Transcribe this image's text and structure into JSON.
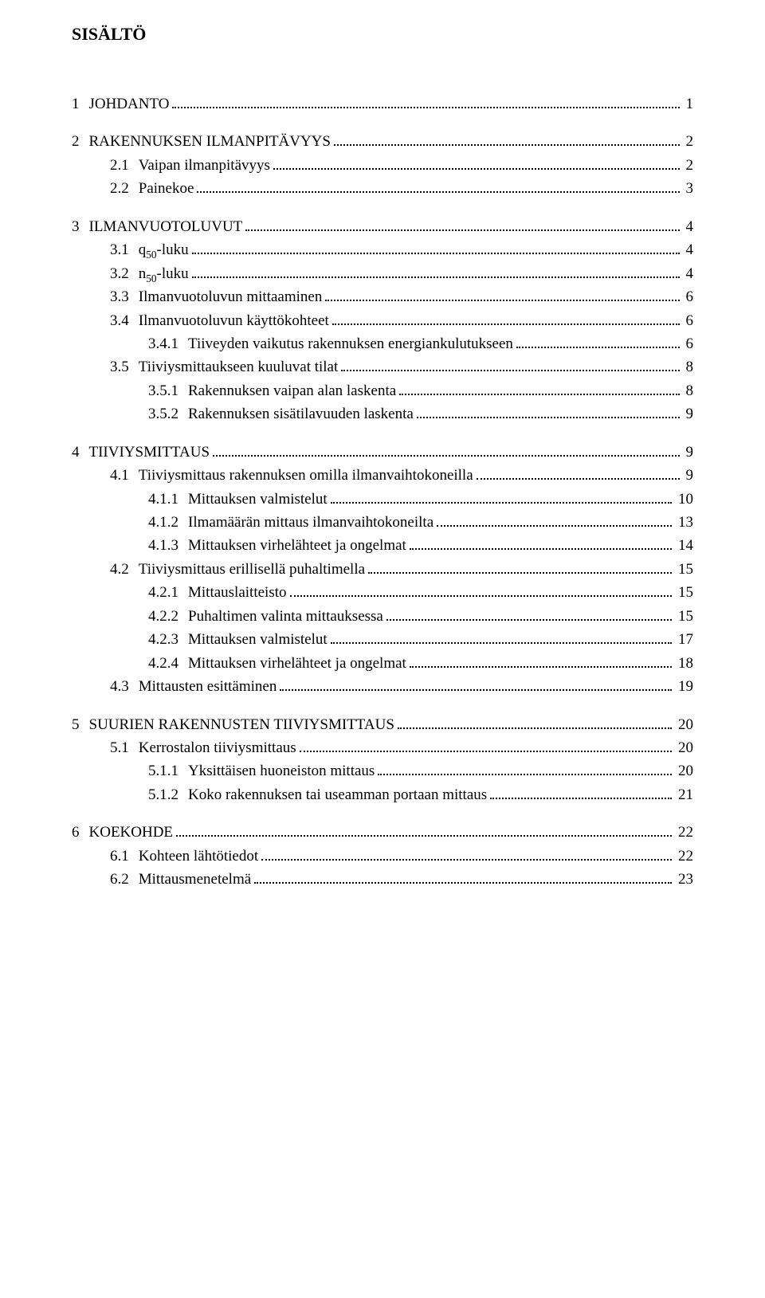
{
  "title": "SISÄLTÖ",
  "entries": [
    {
      "indent": 0,
      "gap": true,
      "num": "1",
      "label": "JOHDANTO",
      "page": "1"
    },
    {
      "indent": 0,
      "gap": true,
      "num": "2",
      "label": "RAKENNUKSEN ILMANPITÄVYYS",
      "page": "2"
    },
    {
      "indent": 1,
      "gap": false,
      "num": "2.1",
      "label": "Vaipan ilmanpitävyys",
      "page": "2"
    },
    {
      "indent": 1,
      "gap": false,
      "num": "2.2",
      "label": "Painekoe",
      "page": "3"
    },
    {
      "indent": 0,
      "gap": true,
      "num": "3",
      "label": "ILMANVUOTOLUVUT",
      "page": "4"
    },
    {
      "indent": 1,
      "gap": false,
      "num": "3.1",
      "label": "q50-luku",
      "page": "4",
      "sub50": true
    },
    {
      "indent": 1,
      "gap": false,
      "num": "3.2",
      "label": "n50-luku",
      "page": "4",
      "sub50": true
    },
    {
      "indent": 1,
      "gap": false,
      "num": "3.3",
      "label": "Ilmanvuotoluvun mittaaminen",
      "page": "6"
    },
    {
      "indent": 1,
      "gap": false,
      "num": "3.4",
      "label": "Ilmanvuotoluvun käyttökohteet",
      "page": "6"
    },
    {
      "indent": 2,
      "gap": false,
      "num": "3.4.1",
      "label": "Tiiveyden vaikutus rakennuksen energiankulutukseen",
      "page": "6"
    },
    {
      "indent": 1,
      "gap": false,
      "num": "3.5",
      "label": "Tiiviysmittaukseen kuuluvat tilat",
      "page": "8"
    },
    {
      "indent": 2,
      "gap": false,
      "num": "3.5.1",
      "label": "Rakennuksen vaipan alan laskenta",
      "page": "8"
    },
    {
      "indent": 2,
      "gap": false,
      "num": "3.5.2",
      "label": "Rakennuksen sisätilavuuden laskenta",
      "page": "9"
    },
    {
      "indent": 0,
      "gap": true,
      "num": "4",
      "label": "TIIVIYSMITTAUS",
      "page": "9"
    },
    {
      "indent": 1,
      "gap": false,
      "num": "4.1",
      "label": "Tiiviysmittaus rakennuksen omilla ilmanvaihtokoneilla",
      "page": "9"
    },
    {
      "indent": 2,
      "gap": false,
      "num": "4.1.1",
      "label": "Mittauksen valmistelut",
      "page": "10"
    },
    {
      "indent": 2,
      "gap": false,
      "num": "4.1.2",
      "label": "Ilmamäärän mittaus ilmanvaihtokoneilta",
      "page": "13"
    },
    {
      "indent": 2,
      "gap": false,
      "num": "4.1.3",
      "label": "Mittauksen virhelähteet ja ongelmat",
      "page": "14"
    },
    {
      "indent": 1,
      "gap": false,
      "num": "4.2",
      "label": "Tiiviysmittaus erillisellä puhaltimella",
      "page": "15"
    },
    {
      "indent": 2,
      "gap": false,
      "num": "4.2.1",
      "label": "Mittauslaitteisto",
      "page": "15"
    },
    {
      "indent": 2,
      "gap": false,
      "num": "4.2.2",
      "label": "Puhaltimen valinta mittauksessa",
      "page": "15"
    },
    {
      "indent": 2,
      "gap": false,
      "num": "4.2.3",
      "label": "Mittauksen valmistelut",
      "page": "17"
    },
    {
      "indent": 2,
      "gap": false,
      "num": "4.2.4",
      "label": "Mittauksen virhelähteet ja ongelmat",
      "page": "18"
    },
    {
      "indent": 1,
      "gap": false,
      "num": "4.3",
      "label": "Mittausten esittäminen",
      "page": "19"
    },
    {
      "indent": 0,
      "gap": true,
      "num": "5",
      "label": "SUURIEN RAKENNUSTEN TIIVIYSMITTAUS",
      "page": "20"
    },
    {
      "indent": 1,
      "gap": false,
      "num": "5.1",
      "label": "Kerrostalon tiiviysmittaus",
      "page": "20"
    },
    {
      "indent": 2,
      "gap": false,
      "num": "5.1.1",
      "label": "Yksittäisen huoneiston mittaus",
      "page": "20"
    },
    {
      "indent": 2,
      "gap": false,
      "num": "5.1.2",
      "label": "Koko rakennuksen tai useamman portaan mittaus",
      "page": "21"
    },
    {
      "indent": 0,
      "gap": true,
      "num": "6",
      "label": "KOEKOHDE",
      "page": "22"
    },
    {
      "indent": 1,
      "gap": false,
      "num": "6.1",
      "label": "Kohteen lähtötiedot",
      "page": "22"
    },
    {
      "indent": 1,
      "gap": false,
      "num": "6.2",
      "label": "Mittausmenetelmä",
      "page": "23"
    }
  ]
}
